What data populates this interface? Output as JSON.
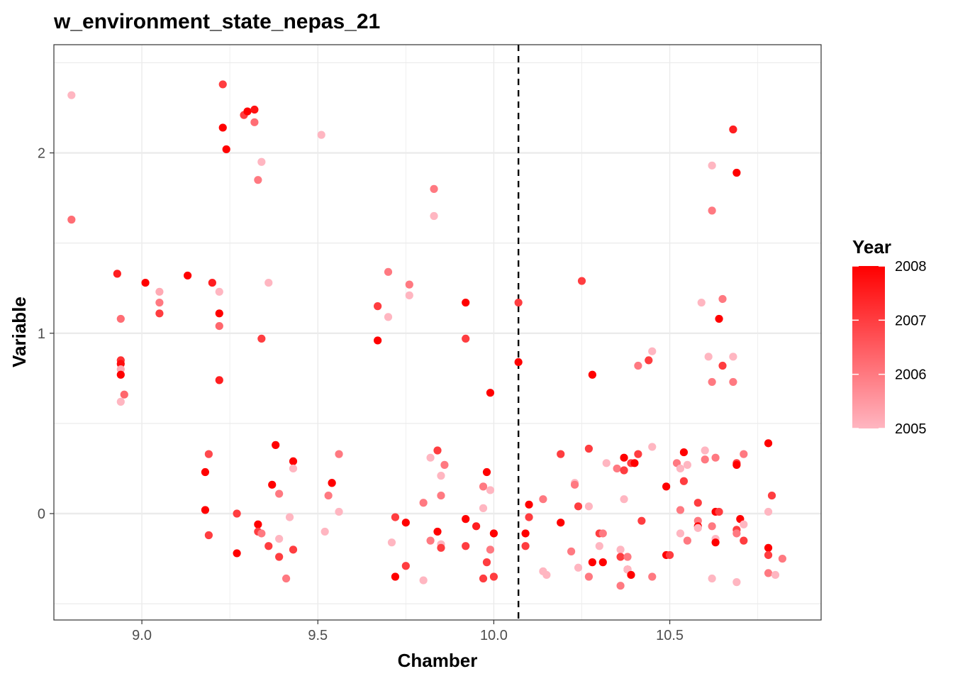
{
  "chart_data": {
    "type": "scatter",
    "title": "w_environment_state_nepas_21",
    "xlabel": "Chamber",
    "ylabel": "Variable",
    "xlim": [
      8.75,
      10.93
    ],
    "ylim": [
      -0.59,
      2.6
    ],
    "x_ticks": [
      9.0,
      9.5,
      10.0,
      10.5
    ],
    "x_tick_labels": [
      "9.0",
      "9.5",
      "10.0",
      "10.5"
    ],
    "y_ticks": [
      0,
      1,
      2
    ],
    "y_tick_labels": [
      "0",
      "1",
      "2"
    ],
    "grid": true,
    "vline": {
      "x": 10.07,
      "style": "dashed",
      "color": "#000000"
    },
    "legend": {
      "title": "Year",
      "position": "right",
      "min": 2005,
      "max": 2008,
      "ticks": [
        2005,
        2006,
        2007,
        2008
      ],
      "low_color": "#FFB6C1",
      "high_color": "#FF0000"
    },
    "points": [
      {
        "x": 8.8,
        "y": 2.32,
        "year": 2005.0
      },
      {
        "x": 8.8,
        "y": 1.63,
        "year": 2006.2
      },
      {
        "x": 8.93,
        "y": 1.33,
        "year": 2007.5
      },
      {
        "x": 8.94,
        "y": 1.08,
        "year": 2006.2
      },
      {
        "x": 8.94,
        "y": 0.85,
        "year": 2007.2
      },
      {
        "x": 8.94,
        "y": 0.83,
        "year": 2007.8
      },
      {
        "x": 8.94,
        "y": 0.8,
        "year": 2005.2
      },
      {
        "x": 8.94,
        "y": 0.77,
        "year": 2008.0
      },
      {
        "x": 8.95,
        "y": 0.66,
        "year": 2006.3
      },
      {
        "x": 8.94,
        "y": 0.62,
        "year": 2005.0
      },
      {
        "x": 9.01,
        "y": 1.28,
        "year": 2008.0
      },
      {
        "x": 9.05,
        "y": 1.23,
        "year": 2005.2
      },
      {
        "x": 9.05,
        "y": 1.17,
        "year": 2006.0
      },
      {
        "x": 9.05,
        "y": 1.11,
        "year": 2007.0
      },
      {
        "x": 9.13,
        "y": 1.32,
        "year": 2008.0
      },
      {
        "x": 9.18,
        "y": 0.23,
        "year": 2008.0
      },
      {
        "x": 9.19,
        "y": 0.33,
        "year": 2006.8
      },
      {
        "x": 9.18,
        "y": 0.02,
        "year": 2008.0
      },
      {
        "x": 9.19,
        "y": -0.12,
        "year": 2007.0
      },
      {
        "x": 9.2,
        "y": 1.28,
        "year": 2007.5
      },
      {
        "x": 9.22,
        "y": 1.23,
        "year": 2005.0
      },
      {
        "x": 9.22,
        "y": 1.11,
        "year": 2008.0
      },
      {
        "x": 9.22,
        "y": 1.04,
        "year": 2006.3
      },
      {
        "x": 9.22,
        "y": 0.74,
        "year": 2007.5
      },
      {
        "x": 9.23,
        "y": 2.38,
        "year": 2007.0
      },
      {
        "x": 9.23,
        "y": 2.14,
        "year": 2008.0
      },
      {
        "x": 9.24,
        "y": 2.02,
        "year": 2008.0
      },
      {
        "x": 9.27,
        "y": 0.0,
        "year": 2007.0
      },
      {
        "x": 9.27,
        "y": -0.22,
        "year": 2008.0
      },
      {
        "x": 9.29,
        "y": 2.21,
        "year": 2007.0
      },
      {
        "x": 9.3,
        "y": 2.23,
        "year": 2008.0
      },
      {
        "x": 9.32,
        "y": 2.24,
        "year": 2007.7
      },
      {
        "x": 9.32,
        "y": 2.17,
        "year": 2006.2
      },
      {
        "x": 9.33,
        "y": 1.85,
        "year": 2006.0
      },
      {
        "x": 9.34,
        "y": 1.95,
        "year": 2005.0
      },
      {
        "x": 9.34,
        "y": 0.97,
        "year": 2007.0
      },
      {
        "x": 9.33,
        "y": -0.06,
        "year": 2008.0
      },
      {
        "x": 9.33,
        "y": -0.1,
        "year": 2007.0
      },
      {
        "x": 9.34,
        "y": -0.11,
        "year": 2006.0
      },
      {
        "x": 9.36,
        "y": 1.28,
        "year": 2005.0
      },
      {
        "x": 9.36,
        "y": -0.18,
        "year": 2007.0
      },
      {
        "x": 9.38,
        "y": 0.38,
        "year": 2008.0
      },
      {
        "x": 9.37,
        "y": 0.16,
        "year": 2008.0
      },
      {
        "x": 9.39,
        "y": 0.11,
        "year": 2006.0
      },
      {
        "x": 9.39,
        "y": -0.14,
        "year": 2005.0
      },
      {
        "x": 9.39,
        "y": -0.24,
        "year": 2007.0
      },
      {
        "x": 9.41,
        "y": -0.36,
        "year": 2006.0
      },
      {
        "x": 9.43,
        "y": 0.29,
        "year": 2008.0
      },
      {
        "x": 9.43,
        "y": 0.25,
        "year": 2005.0
      },
      {
        "x": 9.42,
        "y": -0.02,
        "year": 2005.0
      },
      {
        "x": 9.43,
        "y": -0.2,
        "year": 2007.0
      },
      {
        "x": 9.51,
        "y": 2.1,
        "year": 2005.0
      },
      {
        "x": 9.52,
        "y": -0.1,
        "year": 2005.0
      },
      {
        "x": 9.53,
        "y": 0.1,
        "year": 2006.0
      },
      {
        "x": 9.54,
        "y": 0.17,
        "year": 2007.3
      },
      {
        "x": 9.54,
        "y": 0.17,
        "year": 2008.0
      },
      {
        "x": 9.56,
        "y": 0.33,
        "year": 2006.0
      },
      {
        "x": 9.56,
        "y": 0.01,
        "year": 2005.0
      },
      {
        "x": 9.67,
        "y": 1.15,
        "year": 2007.0
      },
      {
        "x": 9.67,
        "y": 0.96,
        "year": 2008.0
      },
      {
        "x": 9.7,
        "y": 1.34,
        "year": 2006.0
      },
      {
        "x": 9.7,
        "y": 1.09,
        "year": 2005.0
      },
      {
        "x": 9.72,
        "y": -0.02,
        "year": 2007.0
      },
      {
        "x": 9.71,
        "y": -0.16,
        "year": 2005.0
      },
      {
        "x": 9.72,
        "y": -0.35,
        "year": 2008.0
      },
      {
        "x": 9.75,
        "y": -0.05,
        "year": 2008.0
      },
      {
        "x": 9.75,
        "y": -0.29,
        "year": 2007.0
      },
      {
        "x": 9.76,
        "y": 1.27,
        "year": 2006.0
      },
      {
        "x": 9.76,
        "y": 1.21,
        "year": 2005.0
      },
      {
        "x": 9.8,
        "y": 0.06,
        "year": 2006.0
      },
      {
        "x": 9.8,
        "y": -0.37,
        "year": 2005.0
      },
      {
        "x": 9.82,
        "y": 0.31,
        "year": 2005.0
      },
      {
        "x": 9.82,
        "y": -0.15,
        "year": 2006.0
      },
      {
        "x": 9.83,
        "y": 1.8,
        "year": 2006.0
      },
      {
        "x": 9.83,
        "y": 1.65,
        "year": 2005.0
      },
      {
        "x": 9.84,
        "y": 0.35,
        "year": 2007.0
      },
      {
        "x": 9.84,
        "y": -0.1,
        "year": 2008.0
      },
      {
        "x": 9.85,
        "y": 0.21,
        "year": 2005.0
      },
      {
        "x": 9.85,
        "y": 0.1,
        "year": 2006.0
      },
      {
        "x": 9.86,
        "y": 0.27,
        "year": 2006.0
      },
      {
        "x": 9.85,
        "y": -0.17,
        "year": 2005.0
      },
      {
        "x": 9.85,
        "y": -0.19,
        "year": 2007.0
      },
      {
        "x": 9.92,
        "y": 1.17,
        "year": 2008.0
      },
      {
        "x": 9.92,
        "y": 0.97,
        "year": 2007.0
      },
      {
        "x": 9.92,
        "y": -0.03,
        "year": 2008.0
      },
      {
        "x": 9.92,
        "y": -0.18,
        "year": 2007.0
      },
      {
        "x": 9.95,
        "y": -0.07,
        "year": 2007.5
      },
      {
        "x": 9.97,
        "y": 0.15,
        "year": 2006.0
      },
      {
        "x": 9.97,
        "y": 0.03,
        "year": 2005.0
      },
      {
        "x": 9.97,
        "y": -0.36,
        "year": 2007.0
      },
      {
        "x": 9.98,
        "y": 0.23,
        "year": 2008.0
      },
      {
        "x": 9.98,
        "y": -0.27,
        "year": 2007.0
      },
      {
        "x": 9.99,
        "y": 0.67,
        "year": 2008.0
      },
      {
        "x": 9.99,
        "y": 0.13,
        "year": 2005.0
      },
      {
        "x": 9.99,
        "y": -0.2,
        "year": 2006.0
      },
      {
        "x": 10.0,
        "y": -0.11,
        "year": 2008.0
      },
      {
        "x": 10.0,
        "y": -0.35,
        "year": 2007.0
      },
      {
        "x": 10.07,
        "y": 1.17,
        "year": 2007.0
      },
      {
        "x": 10.07,
        "y": 0.84,
        "year": 2008.0
      },
      {
        "x": 10.09,
        "y": -0.11,
        "year": 2008.0
      },
      {
        "x": 10.09,
        "y": -0.18,
        "year": 2007.0
      },
      {
        "x": 10.1,
        "y": 0.05,
        "year": 2008.0
      },
      {
        "x": 10.1,
        "y": -0.02,
        "year": 2007.0
      },
      {
        "x": 10.14,
        "y": 0.08,
        "year": 2006.0
      },
      {
        "x": 10.14,
        "y": -0.32,
        "year": 2005.0
      },
      {
        "x": 10.15,
        "y": -0.34,
        "year": 2005.0
      },
      {
        "x": 10.19,
        "y": 0.33,
        "year": 2007.0
      },
      {
        "x": 10.19,
        "y": -0.05,
        "year": 2008.0
      },
      {
        "x": 10.22,
        "y": -0.21,
        "year": 2006.0
      },
      {
        "x": 10.23,
        "y": 0.17,
        "year": 2005.0
      },
      {
        "x": 10.23,
        "y": 0.16,
        "year": 2006.0
      },
      {
        "x": 10.24,
        "y": 0.04,
        "year": 2007.0
      },
      {
        "x": 10.24,
        "y": -0.3,
        "year": 2005.0
      },
      {
        "x": 10.25,
        "y": 1.29,
        "year": 2007.0
      },
      {
        "x": 10.27,
        "y": 0.36,
        "year": 2007.0
      },
      {
        "x": 10.27,
        "y": 0.04,
        "year": 2005.0
      },
      {
        "x": 10.27,
        "y": -0.35,
        "year": 2006.0
      },
      {
        "x": 10.28,
        "y": 0.77,
        "year": 2008.0
      },
      {
        "x": 10.28,
        "y": -0.27,
        "year": 2008.0
      },
      {
        "x": 10.3,
        "y": -0.11,
        "year": 2007.0
      },
      {
        "x": 10.3,
        "y": -0.18,
        "year": 2005.0
      },
      {
        "x": 10.31,
        "y": -0.11,
        "year": 2006.0
      },
      {
        "x": 10.31,
        "y": -0.27,
        "year": 2008.0
      },
      {
        "x": 10.32,
        "y": 0.28,
        "year": 2005.0
      },
      {
        "x": 10.35,
        "y": 0.25,
        "year": 2006.0
      },
      {
        "x": 10.36,
        "y": -0.2,
        "year": 2005.0
      },
      {
        "x": 10.36,
        "y": -0.24,
        "year": 2007.0
      },
      {
        "x": 10.36,
        "y": -0.4,
        "year": 2006.0
      },
      {
        "x": 10.37,
        "y": 0.31,
        "year": 2008.0
      },
      {
        "x": 10.37,
        "y": 0.24,
        "year": 2007.0
      },
      {
        "x": 10.37,
        "y": 0.08,
        "year": 2005.0
      },
      {
        "x": 10.38,
        "y": -0.24,
        "year": 2006.0
      },
      {
        "x": 10.38,
        "y": -0.31,
        "year": 2008.0
      },
      {
        "x": 10.38,
        "y": -0.31,
        "year": 2005.0
      },
      {
        "x": 10.39,
        "y": 0.28,
        "year": 2007.0
      },
      {
        "x": 10.39,
        "y": -0.34,
        "year": 2008.0
      },
      {
        "x": 10.4,
        "y": 0.28,
        "year": 2008.0
      },
      {
        "x": 10.41,
        "y": 0.33,
        "year": 2007.0
      },
      {
        "x": 10.41,
        "y": 0.82,
        "year": 2006.0
      },
      {
        "x": 10.42,
        "y": -0.04,
        "year": 2007.0
      },
      {
        "x": 10.44,
        "y": 0.85,
        "year": 2007.0
      },
      {
        "x": 10.45,
        "y": 0.9,
        "year": 2005.0
      },
      {
        "x": 10.45,
        "y": 0.37,
        "year": 2005.0
      },
      {
        "x": 10.45,
        "y": -0.35,
        "year": 2006.0
      },
      {
        "x": 10.49,
        "y": 0.15,
        "year": 2008.0
      },
      {
        "x": 10.49,
        "y": -0.23,
        "year": 2008.0
      },
      {
        "x": 10.5,
        "y": -0.23,
        "year": 2007.0
      },
      {
        "x": 10.52,
        "y": 0.28,
        "year": 2006.0
      },
      {
        "x": 10.53,
        "y": 0.25,
        "year": 2005.0
      },
      {
        "x": 10.53,
        "y": 0.02,
        "year": 2006.0
      },
      {
        "x": 10.53,
        "y": -0.11,
        "year": 2005.0
      },
      {
        "x": 10.54,
        "y": 0.34,
        "year": 2008.0
      },
      {
        "x": 10.54,
        "y": 0.18,
        "year": 2007.0
      },
      {
        "x": 10.55,
        "y": 0.27,
        "year": 2005.0
      },
      {
        "x": 10.55,
        "y": -0.15,
        "year": 2006.0
      },
      {
        "x": 10.58,
        "y": 0.06,
        "year": 2007.0
      },
      {
        "x": 10.58,
        "y": -0.04,
        "year": 2006.0
      },
      {
        "x": 10.58,
        "y": -0.07,
        "year": 2008.0
      },
      {
        "x": 10.58,
        "y": -0.08,
        "year": 2005.0
      },
      {
        "x": 10.59,
        "y": 1.17,
        "year": 2005.0
      },
      {
        "x": 10.6,
        "y": 0.35,
        "year": 2005.0
      },
      {
        "x": 10.6,
        "y": 0.3,
        "year": 2006.0
      },
      {
        "x": 10.61,
        "y": 0.87,
        "year": 2005.0
      },
      {
        "x": 10.62,
        "y": 1.93,
        "year": 2005.0
      },
      {
        "x": 10.62,
        "y": 1.68,
        "year": 2006.0
      },
      {
        "x": 10.62,
        "y": 0.73,
        "year": 2006.0
      },
      {
        "x": 10.62,
        "y": -0.07,
        "year": 2006.0
      },
      {
        "x": 10.62,
        "y": -0.36,
        "year": 2005.0
      },
      {
        "x": 10.63,
        "y": 0.31,
        "year": 2006.0
      },
      {
        "x": 10.63,
        "y": 0.01,
        "year": 2008.0
      },
      {
        "x": 10.63,
        "y": -0.14,
        "year": 2005.0
      },
      {
        "x": 10.63,
        "y": -0.16,
        "year": 2008.0
      },
      {
        "x": 10.64,
        "y": 1.08,
        "year": 2008.0
      },
      {
        "x": 10.64,
        "y": 0.01,
        "year": 2007.0
      },
      {
        "x": 10.65,
        "y": 1.19,
        "year": 2006.0
      },
      {
        "x": 10.65,
        "y": 0.82,
        "year": 2007.0
      },
      {
        "x": 10.68,
        "y": 2.13,
        "year": 2007.5
      },
      {
        "x": 10.68,
        "y": 0.87,
        "year": 2005.0
      },
      {
        "x": 10.68,
        "y": 0.73,
        "year": 2006.0
      },
      {
        "x": 10.69,
        "y": 1.89,
        "year": 2008.0
      },
      {
        "x": 10.69,
        "y": 0.28,
        "year": 2007.0
      },
      {
        "x": 10.69,
        "y": 0.27,
        "year": 2008.0
      },
      {
        "x": 10.69,
        "y": -0.09,
        "year": 2007.0
      },
      {
        "x": 10.69,
        "y": -0.11,
        "year": 2006.0
      },
      {
        "x": 10.69,
        "y": -0.38,
        "year": 2005.0
      },
      {
        "x": 10.7,
        "y": -0.03,
        "year": 2008.0
      },
      {
        "x": 10.71,
        "y": 0.33,
        "year": 2006.0
      },
      {
        "x": 10.71,
        "y": -0.06,
        "year": 2005.0
      },
      {
        "x": 10.71,
        "y": -0.15,
        "year": 2007.0
      },
      {
        "x": 10.78,
        "y": 0.39,
        "year": 2008.0
      },
      {
        "x": 10.78,
        "y": 0.01,
        "year": 2005.0
      },
      {
        "x": 10.78,
        "y": -0.19,
        "year": 2008.0
      },
      {
        "x": 10.78,
        "y": -0.23,
        "year": 2007.0
      },
      {
        "x": 10.78,
        "y": -0.33,
        "year": 2006.0
      },
      {
        "x": 10.79,
        "y": 0.1,
        "year": 2007.0
      },
      {
        "x": 10.8,
        "y": -0.34,
        "year": 2005.0
      },
      {
        "x": 10.82,
        "y": -0.25,
        "year": 2006.0
      }
    ]
  }
}
